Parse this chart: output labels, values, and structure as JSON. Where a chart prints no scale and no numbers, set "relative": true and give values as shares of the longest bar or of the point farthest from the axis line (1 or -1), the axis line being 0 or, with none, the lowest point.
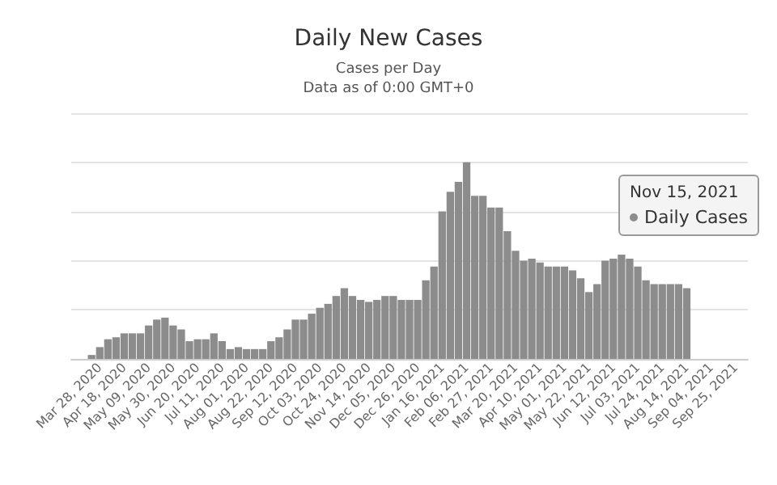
{
  "chart_data": {
    "type": "bar",
    "title": "Daily New Cases",
    "subtitle": "Cases per Day\nData as of 0:00 GMT+0",
    "relative": true,
    "color": "#8c8c8c",
    "grid": "y",
    "categories": [
      null,
      null,
      null,
      "Mar 28, 2020",
      null,
      null,
      "Apr 18, 2020",
      null,
      null,
      "May 09, 2020",
      null,
      null,
      "May 30, 2020",
      null,
      null,
      "Jun 20, 2020",
      null,
      null,
      "Jul 11, 2020",
      null,
      null,
      "Aug 01, 2020",
      null,
      null,
      "Aug 22, 2020",
      null,
      null,
      "Sep 12, 2020",
      null,
      null,
      "Oct 03, 2020",
      null,
      null,
      "Oct 24, 2020",
      null,
      null,
      "Nov 14, 2020",
      null,
      null,
      "Dec 05, 2020",
      null,
      null,
      "Dec 26, 2020",
      null,
      null,
      "Jan 16, 2021",
      null,
      null,
      "Feb 06, 2021",
      null,
      null,
      "Feb 27, 2021",
      null,
      null,
      "Mar 20, 2021",
      null,
      null,
      "Apr 10, 2021",
      null,
      null,
      "May 01, 2021",
      null,
      null,
      "May 22, 2021",
      null,
      null,
      "Jun 12, 2021",
      null,
      null,
      "Jul 03, 2021",
      null,
      null,
      "Jul 24, 2021",
      null,
      null,
      "Aug 14, 2021",
      null,
      null,
      "Sep 04, 2021",
      null,
      null,
      "Sep 25, 2021",
      null
    ],
    "values": [
      0,
      0,
      0.02,
      0.06,
      0.1,
      0.11,
      0.13,
      0.13,
      0.13,
      0.17,
      0.2,
      0.21,
      0.17,
      0.15,
      0.09,
      0.1,
      0.1,
      0.13,
      0.09,
      0.05,
      0.06,
      0.05,
      0.05,
      0.05,
      0.09,
      0.11,
      0.15,
      0.2,
      0.2,
      0.23,
      0.26,
      0.28,
      0.32,
      0.36,
      0.32,
      0.3,
      0.29,
      0.3,
      0.32,
      0.32,
      0.3,
      0.3,
      0.3,
      0.4,
      0.47,
      0.75,
      0.85,
      0.9,
      1,
      0.83,
      0.83,
      0.77,
      0.77,
      0.65,
      0.55,
      0.5,
      0.51,
      0.49,
      0.47,
      0.47,
      0.47,
      0.45,
      0.41,
      0.34,
      0.38,
      0.5,
      0.51,
      0.53,
      0.51,
      0.47,
      0.4,
      0.38,
      0.38,
      0.38,
      0.38,
      0.36,
      null,
      null,
      null,
      null,
      null,
      null,
      null
    ],
    "annotations": [
      "Nov 15, 2021",
      "Daily Cases"
    ]
  }
}
